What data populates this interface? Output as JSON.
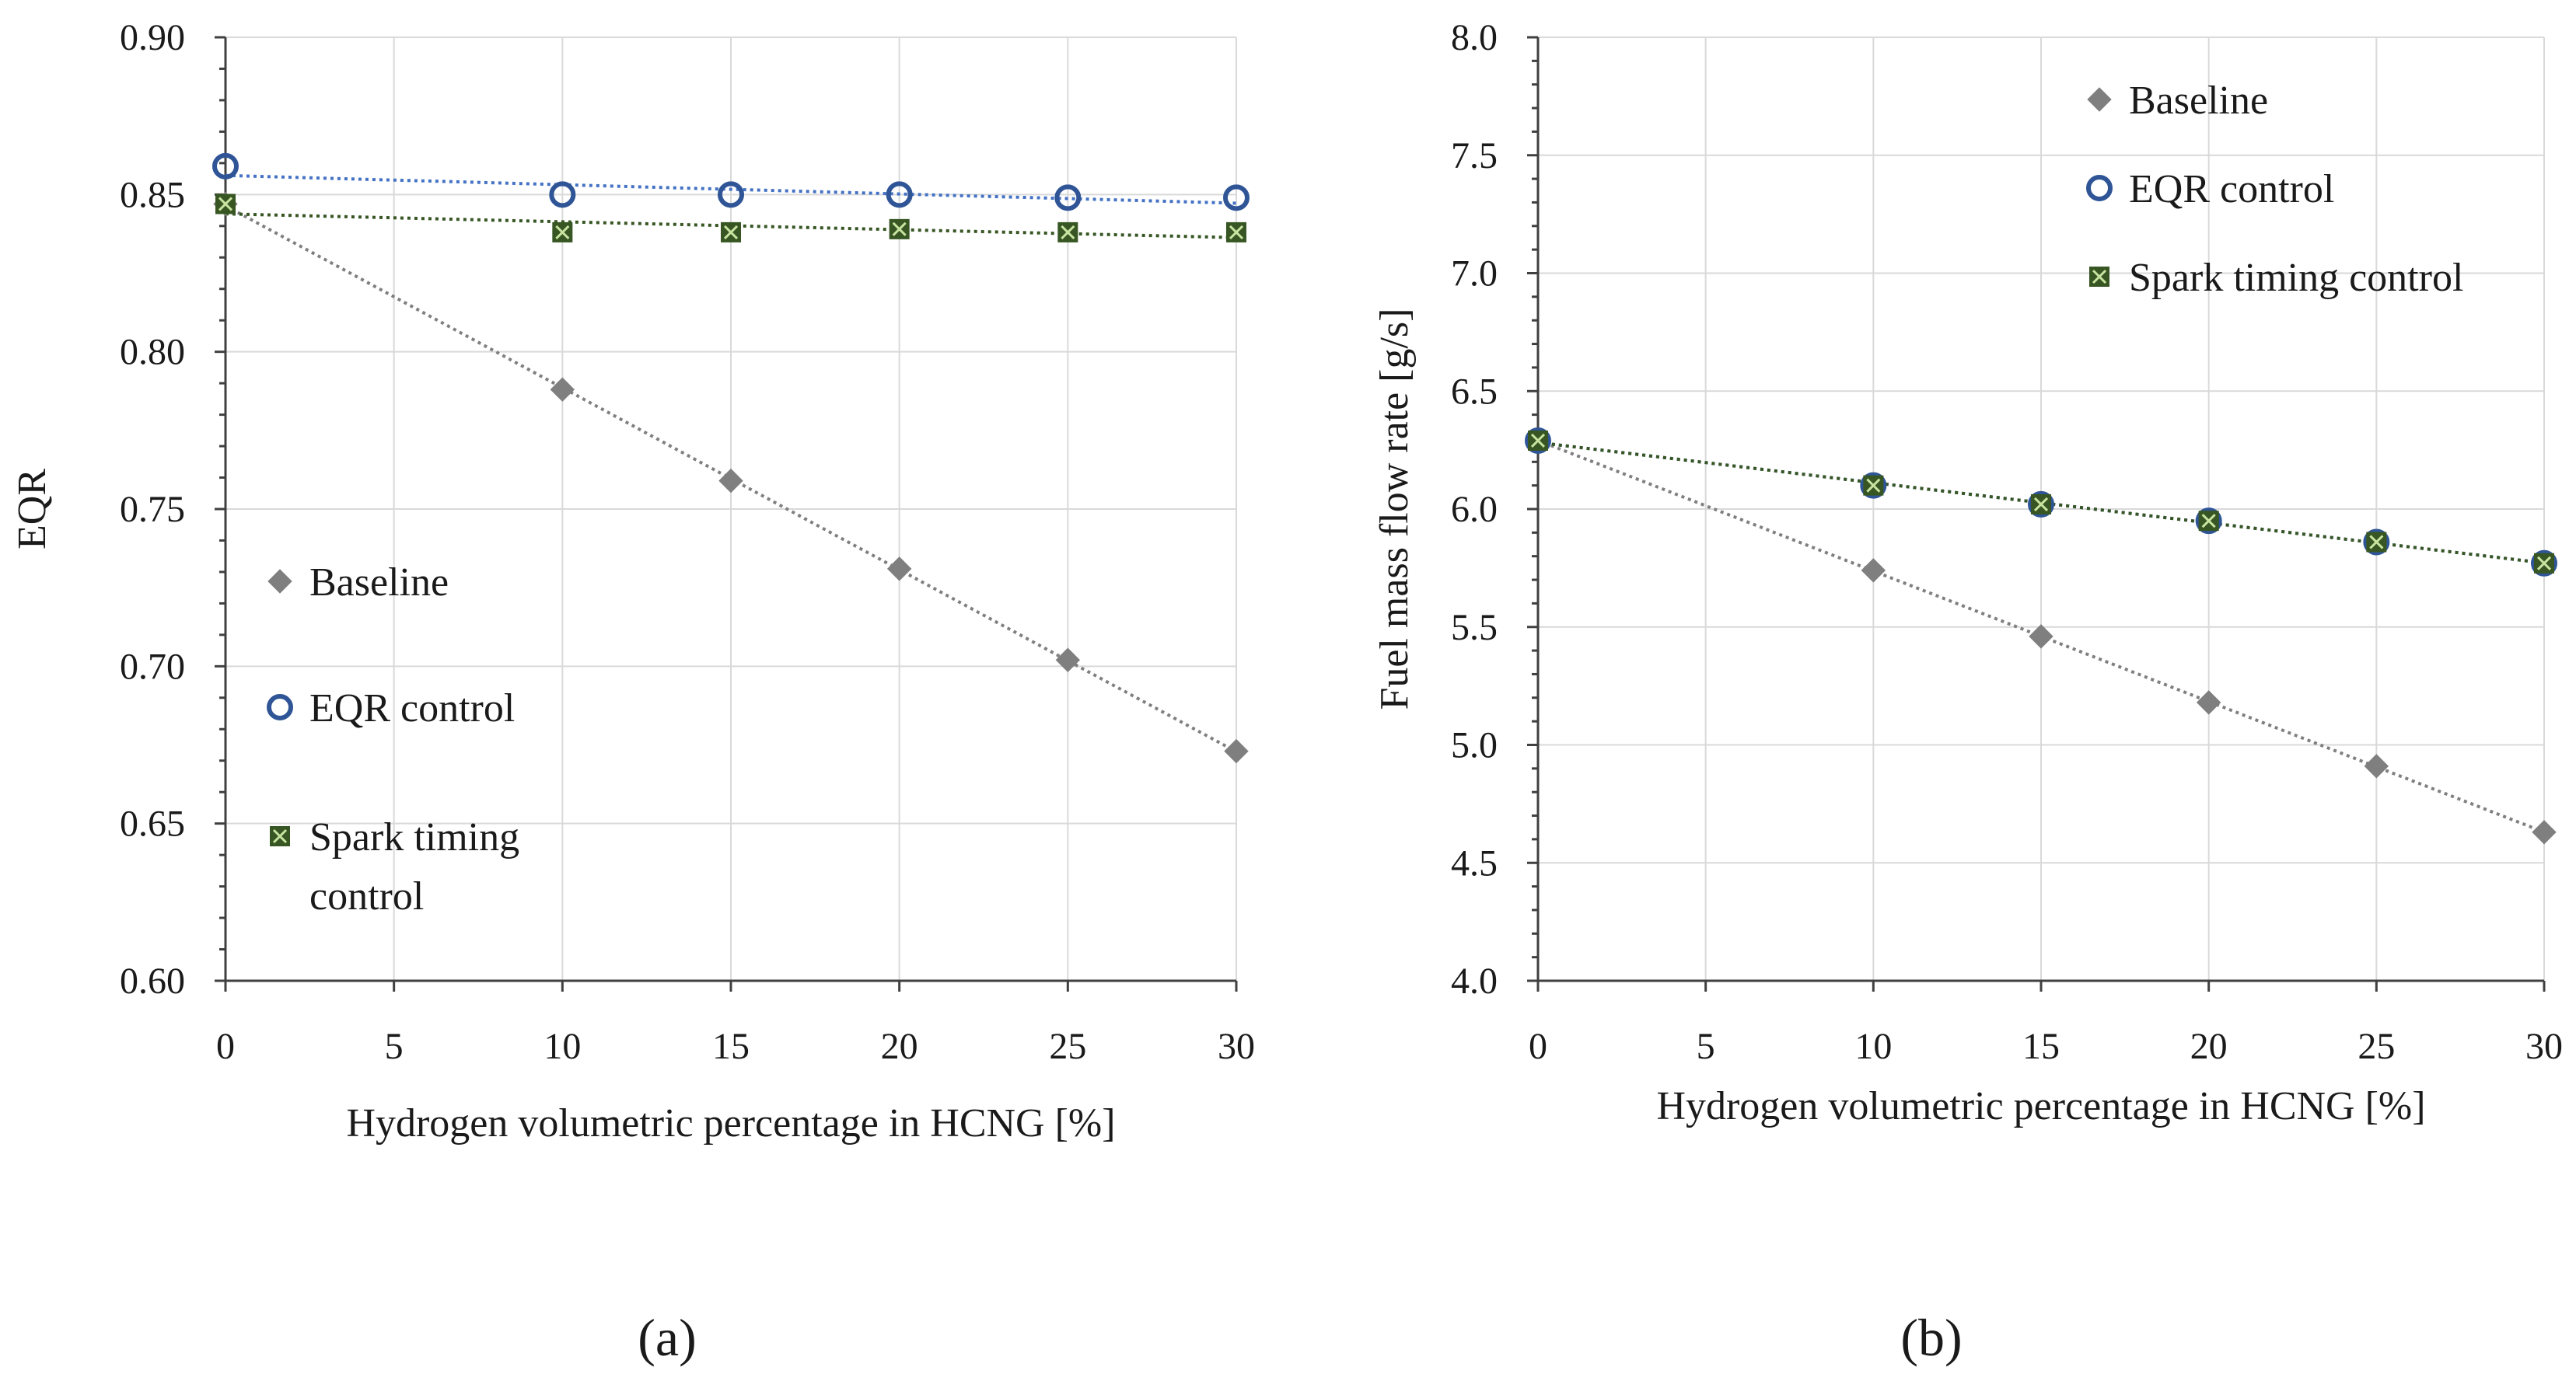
{
  "chart_data": [
    {
      "type": "scatter",
      "panel_label": "a",
      "xlabel": "Hydrogen volumetric percentage in HCNG [%]",
      "ylabel": "EQR",
      "xlim": [
        0,
        30
      ],
      "ylim": [
        0.6,
        0.9
      ],
      "x_ticks": [
        0,
        5,
        10,
        15,
        20,
        25,
        30
      ],
      "y_ticks": [
        0.6,
        0.65,
        0.7,
        0.75,
        0.8,
        0.85,
        0.9
      ],
      "x_tick_labels": [
        "0",
        "5",
        "10",
        "15",
        "20",
        "25",
        "30"
      ],
      "y_tick_labels": [
        "0.60",
        "0.65",
        "0.70",
        "0.75",
        "0.80",
        "0.85",
        "0.90"
      ],
      "grid": true,
      "legend_position": "left-middle",
      "series": [
        {
          "name": "Baseline",
          "marker": "diamond",
          "color": "#7f7f7f",
          "trend_color": "#7f7f7f",
          "x": [
            0,
            10,
            15,
            20,
            25,
            30
          ],
          "y": [
            0.847,
            0.788,
            0.759,
            0.731,
            0.702,
            0.673
          ]
        },
        {
          "name": "EQR control",
          "marker": "circle",
          "color": "#2f5597",
          "trend_color": "#4472c4",
          "x": [
            0,
            10,
            15,
            20,
            25,
            30
          ],
          "y": [
            0.859,
            0.85,
            0.85,
            0.85,
            0.849,
            0.849
          ]
        },
        {
          "name": "Spark timing control",
          "legend_lines": [
            "Spark timing",
            "control"
          ],
          "marker": "square-x",
          "color": "#375623",
          "trend_color": "#375623",
          "x": [
            0,
            10,
            15,
            20,
            25,
            30
          ],
          "y": [
            0.847,
            0.838,
            0.838,
            0.839,
            0.838,
            0.838
          ]
        }
      ]
    },
    {
      "type": "scatter",
      "panel_label": "b",
      "xlabel": "Hydrogen volumetric percentage in HCNG [%]",
      "ylabel": "Fuel mass flow rate [g/s]",
      "xlim": [
        0,
        30
      ],
      "ylim": [
        4.0,
        8.0
      ],
      "x_ticks": [
        0,
        5,
        10,
        15,
        20,
        25,
        30
      ],
      "y_ticks": [
        4.0,
        4.5,
        5.0,
        5.5,
        6.0,
        6.5,
        7.0,
        7.5,
        8.0
      ],
      "x_tick_labels": [
        "0",
        "5",
        "10",
        "15",
        "20",
        "25",
        "30"
      ],
      "y_tick_labels": [
        "4.0",
        "4.5",
        "5.0",
        "5.5",
        "6.0",
        "6.5",
        "7.0",
        "7.5",
        "8.0"
      ],
      "grid": true,
      "legend_position": "top-right",
      "series": [
        {
          "name": "Baseline",
          "marker": "diamond",
          "color": "#7f7f7f",
          "trend_color": "#7f7f7f",
          "x": [
            0,
            10,
            15,
            20,
            25,
            30
          ],
          "y": [
            6.29,
            5.74,
            5.46,
            5.18,
            4.91,
            4.63
          ]
        },
        {
          "name": "EQR control",
          "marker": "circle",
          "color": "#2f5597",
          "trend_color": "#4472c4",
          "x": [
            0,
            10,
            15,
            20,
            25,
            30
          ],
          "y": [
            6.29,
            6.1,
            6.02,
            5.95,
            5.86,
            5.77
          ]
        },
        {
          "name": "Spark timing control",
          "legend_lines": [
            "Spark timing control"
          ],
          "marker": "square-x",
          "color": "#375623",
          "trend_color": "#375623",
          "x": [
            0,
            10,
            15,
            20,
            25,
            30
          ],
          "y": [
            6.29,
            6.1,
            6.02,
            5.95,
            5.86,
            5.77
          ]
        }
      ]
    }
  ],
  "captions": [
    "(a)",
    "(b)"
  ]
}
